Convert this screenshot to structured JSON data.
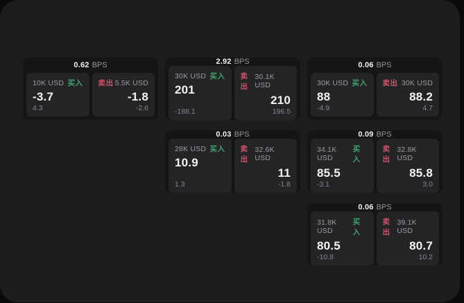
{
  "labels": {
    "bps_unit": "BPS",
    "buy": "买入",
    "sell": "卖出"
  },
  "colors": {
    "page_bg": "#0a0a0a",
    "panel_bg": "#1d1d1e",
    "card_bg": "#151516",
    "tile_bg": "#242427",
    "buy_green": "#41a36c",
    "sell_red": "#ce5268",
    "value_white": "#f4f4f5",
    "muted_gray": "#9c9c9f"
  },
  "cards": [
    {
      "bps": "0.62",
      "buy": {
        "amount": "10K USD",
        "price": "-3.7",
        "delta": "4.3"
      },
      "sell": {
        "amount": "5.5K USD",
        "price": "-1.8",
        "delta": "-2.6"
      }
    },
    {
      "bps": "2.92",
      "buy": {
        "amount": "30K USD",
        "price": "201",
        "delta": "-188.1"
      },
      "sell": {
        "amount": "30.1K USD",
        "price": "210",
        "delta": "196.5"
      }
    },
    {
      "bps": "0.06",
      "buy": {
        "amount": "30K USD",
        "price": "88",
        "delta": "-4.9"
      },
      "sell": {
        "amount": "30K USD",
        "price": "88.2",
        "delta": "4.7"
      }
    },
    {
      "bps": "0.03",
      "buy": {
        "amount": "28K USD",
        "price": "10.9",
        "delta": "1.3"
      },
      "sell": {
        "amount": "32.6K USD",
        "price": "11",
        "delta": "-1.8"
      }
    },
    {
      "bps": "0.09",
      "buy": {
        "amount": "34.1K USD",
        "price": "85.5",
        "delta": "-3.1"
      },
      "sell": {
        "amount": "32.8K USD",
        "price": "85.8",
        "delta": "3.0"
      }
    },
    {
      "bps": "0.06",
      "buy": {
        "amount": "31.8K USD",
        "price": "80.5",
        "delta": "-10.8"
      },
      "sell": {
        "amount": "39.1K USD",
        "price": "80.7",
        "delta": "10.2"
      }
    }
  ]
}
